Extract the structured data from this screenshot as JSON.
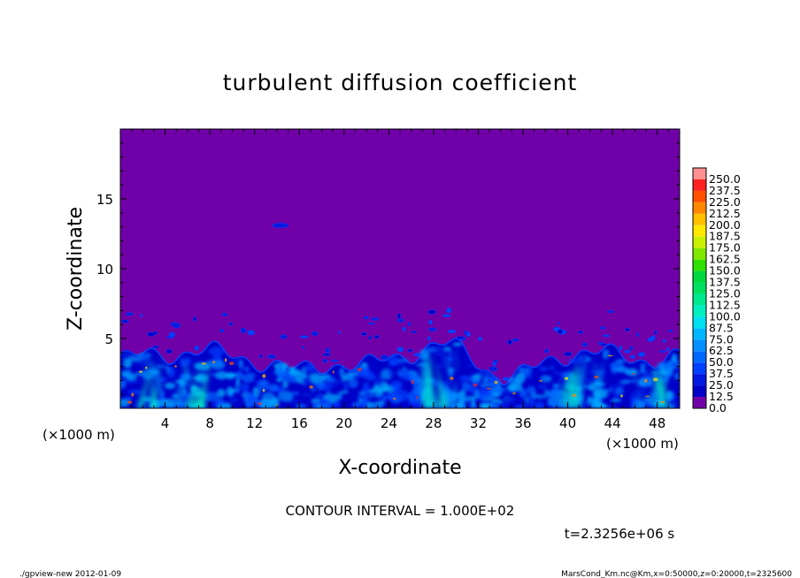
{
  "chart_data": {
    "type": "heatmap",
    "title": "turbulent diffusion coefficient",
    "xlabel": "X-coordinate",
    "ylabel": "Z-coordinate",
    "x_unit_left": "(×1000 m)",
    "x_unit_right": "(×1000 m)",
    "xlim": [
      0,
      50
    ],
    "ylim": [
      0,
      20
    ],
    "x_ticks": [
      4,
      8,
      12,
      16,
      20,
      24,
      28,
      32,
      36,
      40,
      44,
      48
    ],
    "x_tick_labels": [
      "4",
      "8",
      "12",
      "16",
      "20",
      "24",
      "28",
      "32",
      "36",
      "40",
      "44",
      "48"
    ],
    "y_ticks": [
      5,
      10,
      15
    ],
    "y_tick_labels": [
      "5",
      "10",
      "15"
    ],
    "colorbar": {
      "levels": [
        0.0,
        12.5,
        25.0,
        37.5,
        50.0,
        62.5,
        75.0,
        87.5,
        100.0,
        112.5,
        125.0,
        137.5,
        150.0,
        162.5,
        175.0,
        187.5,
        200.0,
        212.5,
        225.0,
        237.5,
        250.0
      ],
      "labels": [
        "0.0",
        "12.5",
        "25.0",
        "37.5",
        "50.0",
        "62.5",
        "75.0",
        "87.5",
        "100.0",
        "112.5",
        "125.0",
        "137.5",
        "150.0",
        "162.5",
        "175.0",
        "187.5",
        "200.0",
        "212.5",
        "225.0",
        "237.5",
        "250.0"
      ],
      "colors": [
        "#7000a8",
        "#0000c8",
        "#0018e0",
        "#0040ff",
        "#0068ff",
        "#0090ff",
        "#00b8ff",
        "#00e0f0",
        "#00f0c0",
        "#00e890",
        "#00e060",
        "#00d840",
        "#30e000",
        "#80e800",
        "#c8f000",
        "#ffe800",
        "#ffc000",
        "#ff8800",
        "#ff5000",
        "#ff2020",
        "#ff9090"
      ]
    },
    "background_color": "#7000a8",
    "contour_interval": "CONTOUR INTERVAL = 1.000E+02",
    "time_label": "t=2.3256e+06 s"
  },
  "footer": {
    "left": "./gpview-new  2012-01-09",
    "right": "MarsCond_Km.nc@Km,x=0:50000,z=0:20000,t=2325600"
  }
}
